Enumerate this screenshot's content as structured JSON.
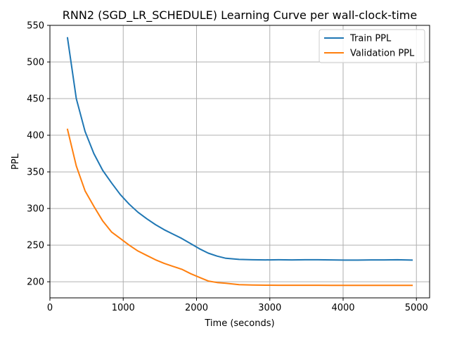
{
  "chart_data": {
    "type": "line",
    "title": "RNN2 (SGD_LR_SCHEDULE) Learning Curve per wall-clock-time",
    "xlabel": "Time (seconds)",
    "ylabel": "PPL",
    "xlim": [
      0,
      5180
    ],
    "ylim": [
      178,
      550
    ],
    "xticks": [
      0,
      1000,
      2000,
      3000,
      4000,
      5000
    ],
    "yticks": [
      200,
      250,
      300,
      350,
      400,
      450,
      500,
      550
    ],
    "grid": true,
    "legend_position": "top-right",
    "series": [
      {
        "name": "Train PPL",
        "color": "#1f77b4",
        "x": [
          240,
          360,
          480,
          600,
          720,
          840,
          960,
          1080,
          1200,
          1320,
          1440,
          1560,
          1680,
          1800,
          1920,
          2040,
          2160,
          2280,
          2400,
          2580,
          2760,
          2940,
          3120,
          3300,
          3480,
          3660,
          3840,
          4020,
          4200,
          4380,
          4560,
          4740,
          4940
        ],
        "y": [
          533,
          450,
          405,
          375,
          352,
          335,
          319,
          306,
          295,
          286,
          278,
          271,
          265,
          259,
          252,
          245,
          239,
          235,
          232,
          230.5,
          230,
          229.8,
          230,
          229.8,
          230,
          230,
          229.8,
          229.5,
          229.5,
          229.8,
          229.8,
          230,
          229.5
        ]
      },
      {
        "name": "Validation PPL",
        "color": "#ff7f0e",
        "x": [
          240,
          360,
          480,
          600,
          720,
          840,
          960,
          1080,
          1200,
          1320,
          1440,
          1560,
          1680,
          1800,
          1920,
          2040,
          2160,
          2280,
          2400,
          2580,
          2760,
          2940,
          3120,
          3300,
          3480,
          3660,
          3840,
          4020,
          4200,
          4380,
          4560,
          4740,
          4940
        ],
        "y": [
          408,
          358,
          324,
          303,
          283,
          268,
          259,
          250,
          242,
          236,
          230,
          225,
          221,
          217,
          211,
          206,
          201,
          199,
          198,
          196,
          195.5,
          195.3,
          195.2,
          195.2,
          195.2,
          195.2,
          195.1,
          195.1,
          195.1,
          195.1,
          195.1,
          195.1,
          195.1
        ]
      }
    ]
  }
}
